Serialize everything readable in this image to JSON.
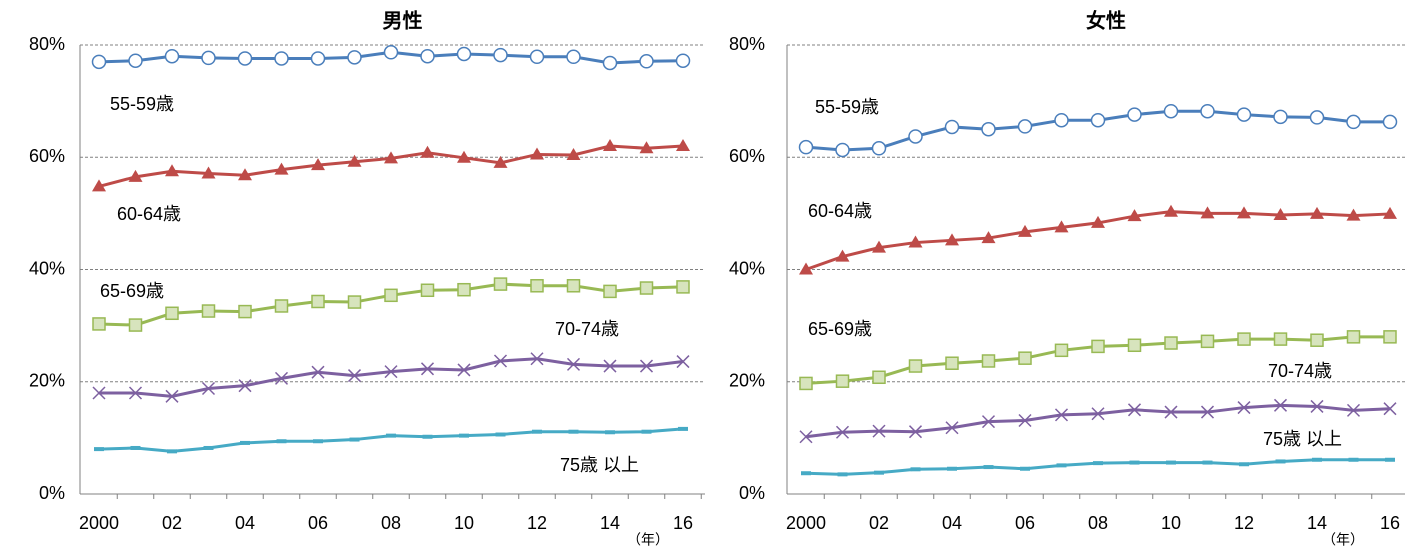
{
  "chart_data": [
    {
      "type": "line",
      "title": "男性",
      "x_label": "（年）",
      "categories": [
        "2000",
        null,
        "02",
        null,
        "04",
        null,
        "06",
        null,
        "08",
        null,
        "10",
        null,
        "12",
        null,
        "14",
        null,
        "16"
      ],
      "ylim": [
        0,
        80
      ],
      "yticks": [
        {
          "value": 0,
          "label": "0%"
        },
        {
          "value": 20,
          "label": "20%"
        },
        {
          "value": 40,
          "label": "40%"
        },
        {
          "value": 60,
          "label": "60%"
        },
        {
          "value": 80,
          "label": "80%"
        }
      ],
      "grid": true,
      "series": [
        {
          "name": "55-59歳",
          "color": "#4a7ebb",
          "values": [
            77.0,
            77.2,
            78.0,
            77.7,
            77.6,
            77.6,
            77.6,
            77.8,
            78.7,
            78.0,
            78.4,
            78.2,
            77.9,
            77.9,
            76.8,
            77.1,
            77.2
          ]
        },
        {
          "name": "60-64歳",
          "color": "#be4b48",
          "values": [
            54.8,
            56.5,
            57.5,
            57.1,
            56.8,
            57.8,
            58.6,
            59.2,
            59.8,
            60.8,
            59.9,
            59.0,
            60.5,
            60.4,
            62.0,
            61.6,
            62.0
          ]
        },
        {
          "name": "65-69歳",
          "color": "#98b954",
          "values": [
            30.3,
            30.1,
            32.2,
            32.6,
            32.5,
            33.5,
            34.3,
            34.2,
            35.4,
            36.3,
            36.4,
            37.4,
            37.1,
            37.1,
            36.1,
            36.7,
            36.9
          ]
        },
        {
          "name": "70-74歳",
          "color": "#7d60a0",
          "values": [
            18.0,
            18.0,
            17.4,
            18.8,
            19.3,
            20.6,
            21.7,
            21.1,
            21.8,
            22.3,
            22.1,
            23.7,
            24.1,
            23.1,
            22.8,
            22.8,
            23.6
          ]
        },
        {
          "name": "75歳 以上",
          "color": "#46aac5",
          "values": [
            8.0,
            8.2,
            7.6,
            8.2,
            9.1,
            9.4,
            9.4,
            9.7,
            10.4,
            10.2,
            10.4,
            10.6,
            11.1,
            11.1,
            11.0,
            11.1,
            11.6
          ]
        }
      ]
    },
    {
      "type": "line",
      "title": "女性",
      "x_label": "（年）",
      "categories": [
        "2000",
        null,
        "02",
        null,
        "04",
        null,
        "06",
        null,
        "08",
        null,
        "10",
        null,
        "12",
        null,
        "14",
        null,
        "16"
      ],
      "ylim": [
        0,
        80
      ],
      "yticks": [
        {
          "value": 0,
          "label": "0%"
        },
        {
          "value": 20,
          "label": "20%"
        },
        {
          "value": 40,
          "label": "40%"
        },
        {
          "value": 60,
          "label": "60%"
        },
        {
          "value": 80,
          "label": "80%"
        }
      ],
      "grid": true,
      "series": [
        {
          "name": "55-59歳",
          "color": "#4a7ebb",
          "values": [
            61.8,
            61.3,
            61.6,
            63.7,
            65.4,
            65.0,
            65.5,
            66.6,
            66.6,
            67.6,
            68.2,
            68.2,
            67.6,
            67.2,
            67.1,
            66.3,
            66.3
          ]
        },
        {
          "name": "60-64歳",
          "color": "#be4b48",
          "values": [
            40.0,
            42.3,
            43.9,
            44.8,
            45.2,
            45.6,
            46.7,
            47.5,
            48.3,
            49.5,
            50.3,
            50.0,
            50.0,
            49.7,
            49.9,
            49.6,
            49.9
          ]
        },
        {
          "name": "65-69歳",
          "color": "#98b954",
          "values": [
            19.7,
            20.1,
            20.8,
            22.8,
            23.3,
            23.7,
            24.2,
            25.6,
            26.3,
            26.5,
            26.9,
            27.2,
            27.6,
            27.6,
            27.4,
            28.0,
            28.0
          ]
        },
        {
          "name": "70-74歳",
          "color": "#7d60a0",
          "values": [
            10.2,
            11.0,
            11.2,
            11.1,
            11.8,
            12.9,
            13.1,
            14.1,
            14.3,
            15.0,
            14.6,
            14.6,
            15.4,
            15.8,
            15.6,
            14.9,
            15.2
          ]
        },
        {
          "name": "75歳 以上",
          "color": "#46aac5",
          "values": [
            3.7,
            3.5,
            3.8,
            4.4,
            4.5,
            4.8,
            4.5,
            5.1,
            5.5,
            5.6,
            5.6,
            5.6,
            5.3,
            5.8,
            6.1,
            6.1,
            6.1
          ]
        }
      ]
    }
  ]
}
